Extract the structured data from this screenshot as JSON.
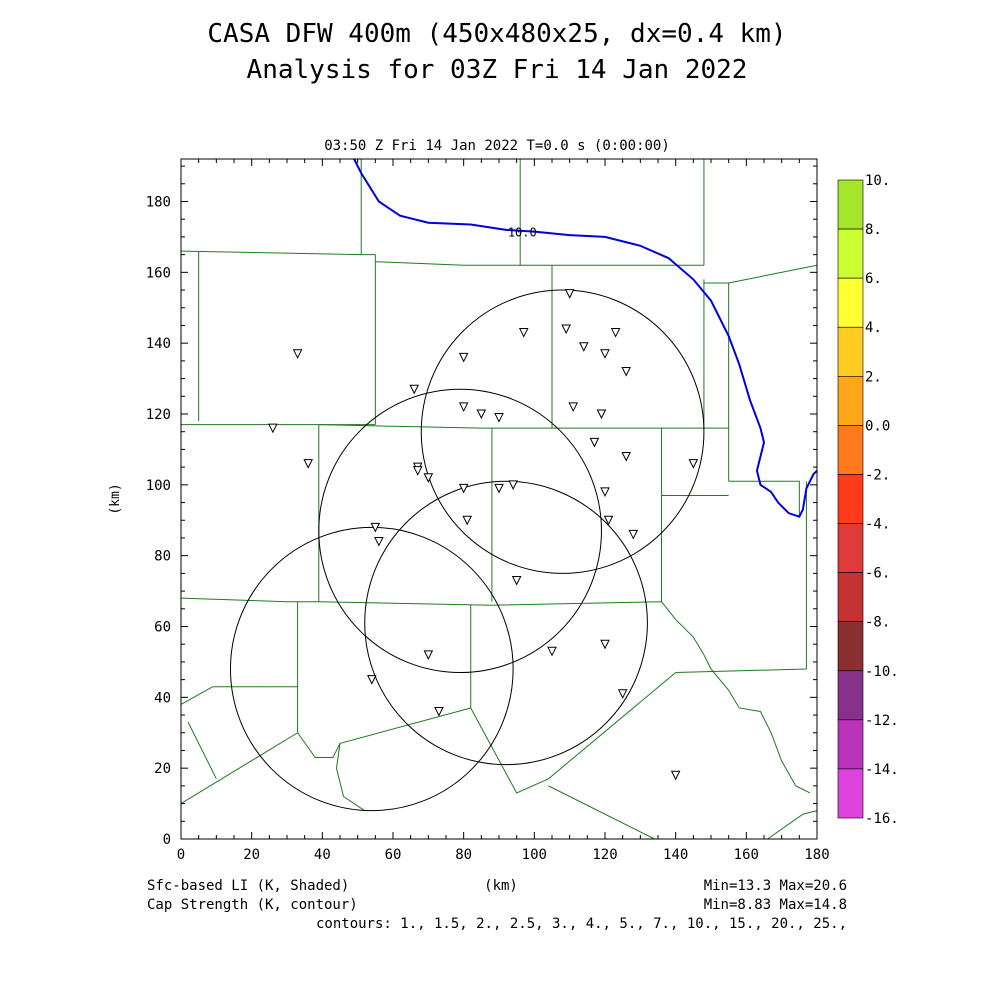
{
  "header": {
    "title_line1": "CASA DFW 400m (450x480x25, dx=0.4 km)",
    "title_line2": "Analysis for 03Z Fri 14 Jan 2022",
    "subtitle": "03:50 Z Fri 14 Jan 2022   T=0.0 s (0:00:00)"
  },
  "footer": {
    "left1": "Sfc-based LI (K, Shaded)",
    "left2": "Cap Strength (K, contour)",
    "xunit": "(km)",
    "stats1": "Min=13.3 Max=20.6",
    "stats2": "Min=8.83 Max=14.8",
    "contours": "contours: 1., 1.5, 2., 2.5, 3., 4., 5., 7., 10., 15., 20., 25.,"
  },
  "colors": {
    "county_lines": "#1e7a1e",
    "river": "#0000dd",
    "contour_label": "#0000dd"
  },
  "chart_data": {
    "type": "map",
    "xlabel": "(km)",
    "ylabel": "(km)",
    "xlim": [
      0,
      180
    ],
    "ylim": [
      0,
      192
    ],
    "xticks": [
      "0",
      "20",
      "40",
      "60",
      "80",
      "100",
      "120",
      "140",
      "160",
      "180"
    ],
    "yticks": [
      "0",
      "20",
      "40",
      "60",
      "80",
      "100",
      "120",
      "140",
      "160",
      "180"
    ],
    "contour_label": "10.0",
    "contour_line": [
      [
        49,
        192
      ],
      [
        51,
        188
      ],
      [
        56,
        180
      ],
      [
        62,
        176
      ],
      [
        70,
        174
      ],
      [
        82,
        173.5
      ],
      [
        92,
        172
      ],
      [
        100,
        171.5
      ],
      [
        110,
        170.5
      ],
      [
        120,
        170
      ],
      [
        130,
        167.5
      ],
      [
        138,
        164
      ],
      [
        145,
        158
      ],
      [
        150,
        152
      ],
      [
        155,
        142
      ],
      [
        158,
        134
      ],
      [
        161,
        124
      ],
      [
        164,
        116
      ],
      [
        165,
        112
      ],
      [
        163,
        104
      ],
      [
        164,
        100
      ],
      [
        167,
        98
      ],
      [
        169,
        95
      ],
      [
        172,
        92
      ],
      [
        175,
        91
      ],
      [
        176,
        93
      ],
      [
        177,
        99
      ],
      [
        179,
        103
      ],
      [
        180,
        104
      ]
    ],
    "radar_circles": [
      {
        "cx": 108,
        "cy": 115,
        "r": 40
      },
      {
        "cx": 79,
        "cy": 87,
        "r": 40
      },
      {
        "cx": 92,
        "cy": 61,
        "r": 40
      },
      {
        "cx": 54,
        "cy": 48,
        "r": 40
      }
    ],
    "stations": [
      [
        110,
        154
      ],
      [
        97,
        143
      ],
      [
        109,
        144
      ],
      [
        114,
        139
      ],
      [
        123,
        143
      ],
      [
        120,
        137
      ],
      [
        126,
        132
      ],
      [
        80,
        136
      ],
      [
        33,
        137
      ],
      [
        66,
        127
      ],
      [
        111,
        122
      ],
      [
        119,
        120
      ],
      [
        80,
        122
      ],
      [
        85,
        120
      ],
      [
        90,
        119
      ],
      [
        26,
        116
      ],
      [
        117,
        112
      ],
      [
        36,
        106
      ],
      [
        126,
        108
      ],
      [
        145,
        106
      ],
      [
        67,
        105
      ],
      [
        67,
        104
      ],
      [
        70,
        102
      ],
      [
        80,
        99
      ],
      [
        90,
        99
      ],
      [
        94,
        100
      ],
      [
        120,
        98
      ],
      [
        81,
        90
      ],
      [
        121,
        90
      ],
      [
        128,
        86
      ],
      [
        55,
        88
      ],
      [
        56,
        84
      ],
      [
        95,
        73
      ],
      [
        70,
        52
      ],
      [
        105,
        53
      ],
      [
        120,
        55
      ],
      [
        54,
        45
      ],
      [
        73,
        36
      ],
      [
        125,
        41
      ],
      [
        140,
        18
      ]
    ],
    "county_boundaries": [
      [
        [
          0,
          166
        ],
        [
          51,
          165
        ]
      ],
      [
        [
          51,
          165
        ],
        [
          51,
          192
        ]
      ],
      [
        [
          51,
          165
        ],
        [
          55,
          165
        ]
      ],
      [
        [
          55,
          165
        ],
        [
          55,
          117
        ]
      ],
      [
        [
          55,
          163
        ],
        [
          80,
          162
        ],
        [
          105,
          162
        ]
      ],
      [
        [
          105,
          162
        ],
        [
          148,
          162
        ]
      ],
      [
        [
          105,
          162
        ],
        [
          105,
          116
        ]
      ],
      [
        [
          96,
          192
        ],
        [
          96,
          162
        ]
      ],
      [
        [
          148,
          192
        ],
        [
          148,
          162
        ]
      ],
      [
        [
          148,
          158
        ],
        [
          148,
          116
        ]
      ],
      [
        [
          148,
          157
        ],
        [
          155,
          157
        ],
        [
          180,
          162
        ]
      ],
      [
        [
          155,
          157
        ],
        [
          155,
          101
        ]
      ],
      [
        [
          5,
          166
        ],
        [
          5,
          118
        ]
      ],
      [
        [
          0,
          117
        ],
        [
          39,
          117
        ]
      ],
      [
        [
          39,
          117
        ],
        [
          55,
          117
        ]
      ],
      [
        [
          39,
          117
        ],
        [
          39,
          67
        ]
      ],
      [
        [
          39,
          117
        ],
        [
          85,
          116
        ],
        [
          136,
          116
        ],
        [
          155,
          116
        ]
      ],
      [
        [
          88,
          116
        ],
        [
          88,
          67
        ]
      ],
      [
        [
          136,
          116
        ],
        [
          136,
          67
        ]
      ],
      [
        [
          136,
          97
        ],
        [
          155,
          97
        ]
      ],
      [
        [
          155,
          101
        ],
        [
          175,
          101
        ],
        [
          175,
          91
        ]
      ],
      [
        [
          177,
          101
        ],
        [
          177,
          48
        ]
      ],
      [
        [
          177,
          48
        ],
        [
          140,
          47
        ]
      ],
      [
        [
          0,
          68
        ],
        [
          30,
          67
        ]
      ],
      [
        [
          30,
          67
        ],
        [
          39,
          67
        ]
      ],
      [
        [
          39,
          67
        ],
        [
          88,
          66
        ],
        [
          136,
          67
        ]
      ],
      [
        [
          82,
          66
        ],
        [
          82,
          37
        ]
      ],
      [
        [
          33,
          67
        ],
        [
          33,
          30
        ]
      ],
      [
        [
          9,
          43
        ],
        [
          24,
          43
        ]
      ],
      [
        [
          0,
          38
        ],
        [
          9,
          43
        ]
      ],
      [
        [
          24,
          43
        ],
        [
          33,
          43
        ]
      ],
      [
        [
          0,
          10
        ],
        [
          33,
          30
        ]
      ],
      [
        [
          33,
          30
        ],
        [
          38,
          23
        ],
        [
          43,
          23
        ],
        [
          45,
          27
        ],
        [
          82,
          37
        ]
      ],
      [
        [
          2,
          33
        ],
        [
          10,
          17
        ]
      ],
      [
        [
          82,
          37
        ],
        [
          95,
          13
        ],
        [
          104,
          17
        ],
        [
          140,
          47
        ]
      ],
      [
        [
          104,
          15
        ],
        [
          134,
          0
        ]
      ],
      [
        [
          136,
          67
        ],
        [
          140,
          62
        ],
        [
          145,
          57
        ],
        [
          148,
          52
        ],
        [
          150,
          48
        ]
      ],
      [
        [
          150,
          48
        ],
        [
          155,
          42
        ],
        [
          158,
          37
        ],
        [
          164,
          36
        ],
        [
          167,
          30
        ],
        [
          170,
          22
        ],
        [
          174,
          15
        ],
        [
          178,
          13
        ]
      ],
      [
        [
          166,
          0
        ],
        [
          176,
          7
        ],
        [
          180,
          8
        ]
      ],
      [
        [
          45,
          27
        ],
        [
          44,
          20
        ],
        [
          46,
          12
        ],
        [
          52,
          8
        ]
      ]
    ]
  }
}
